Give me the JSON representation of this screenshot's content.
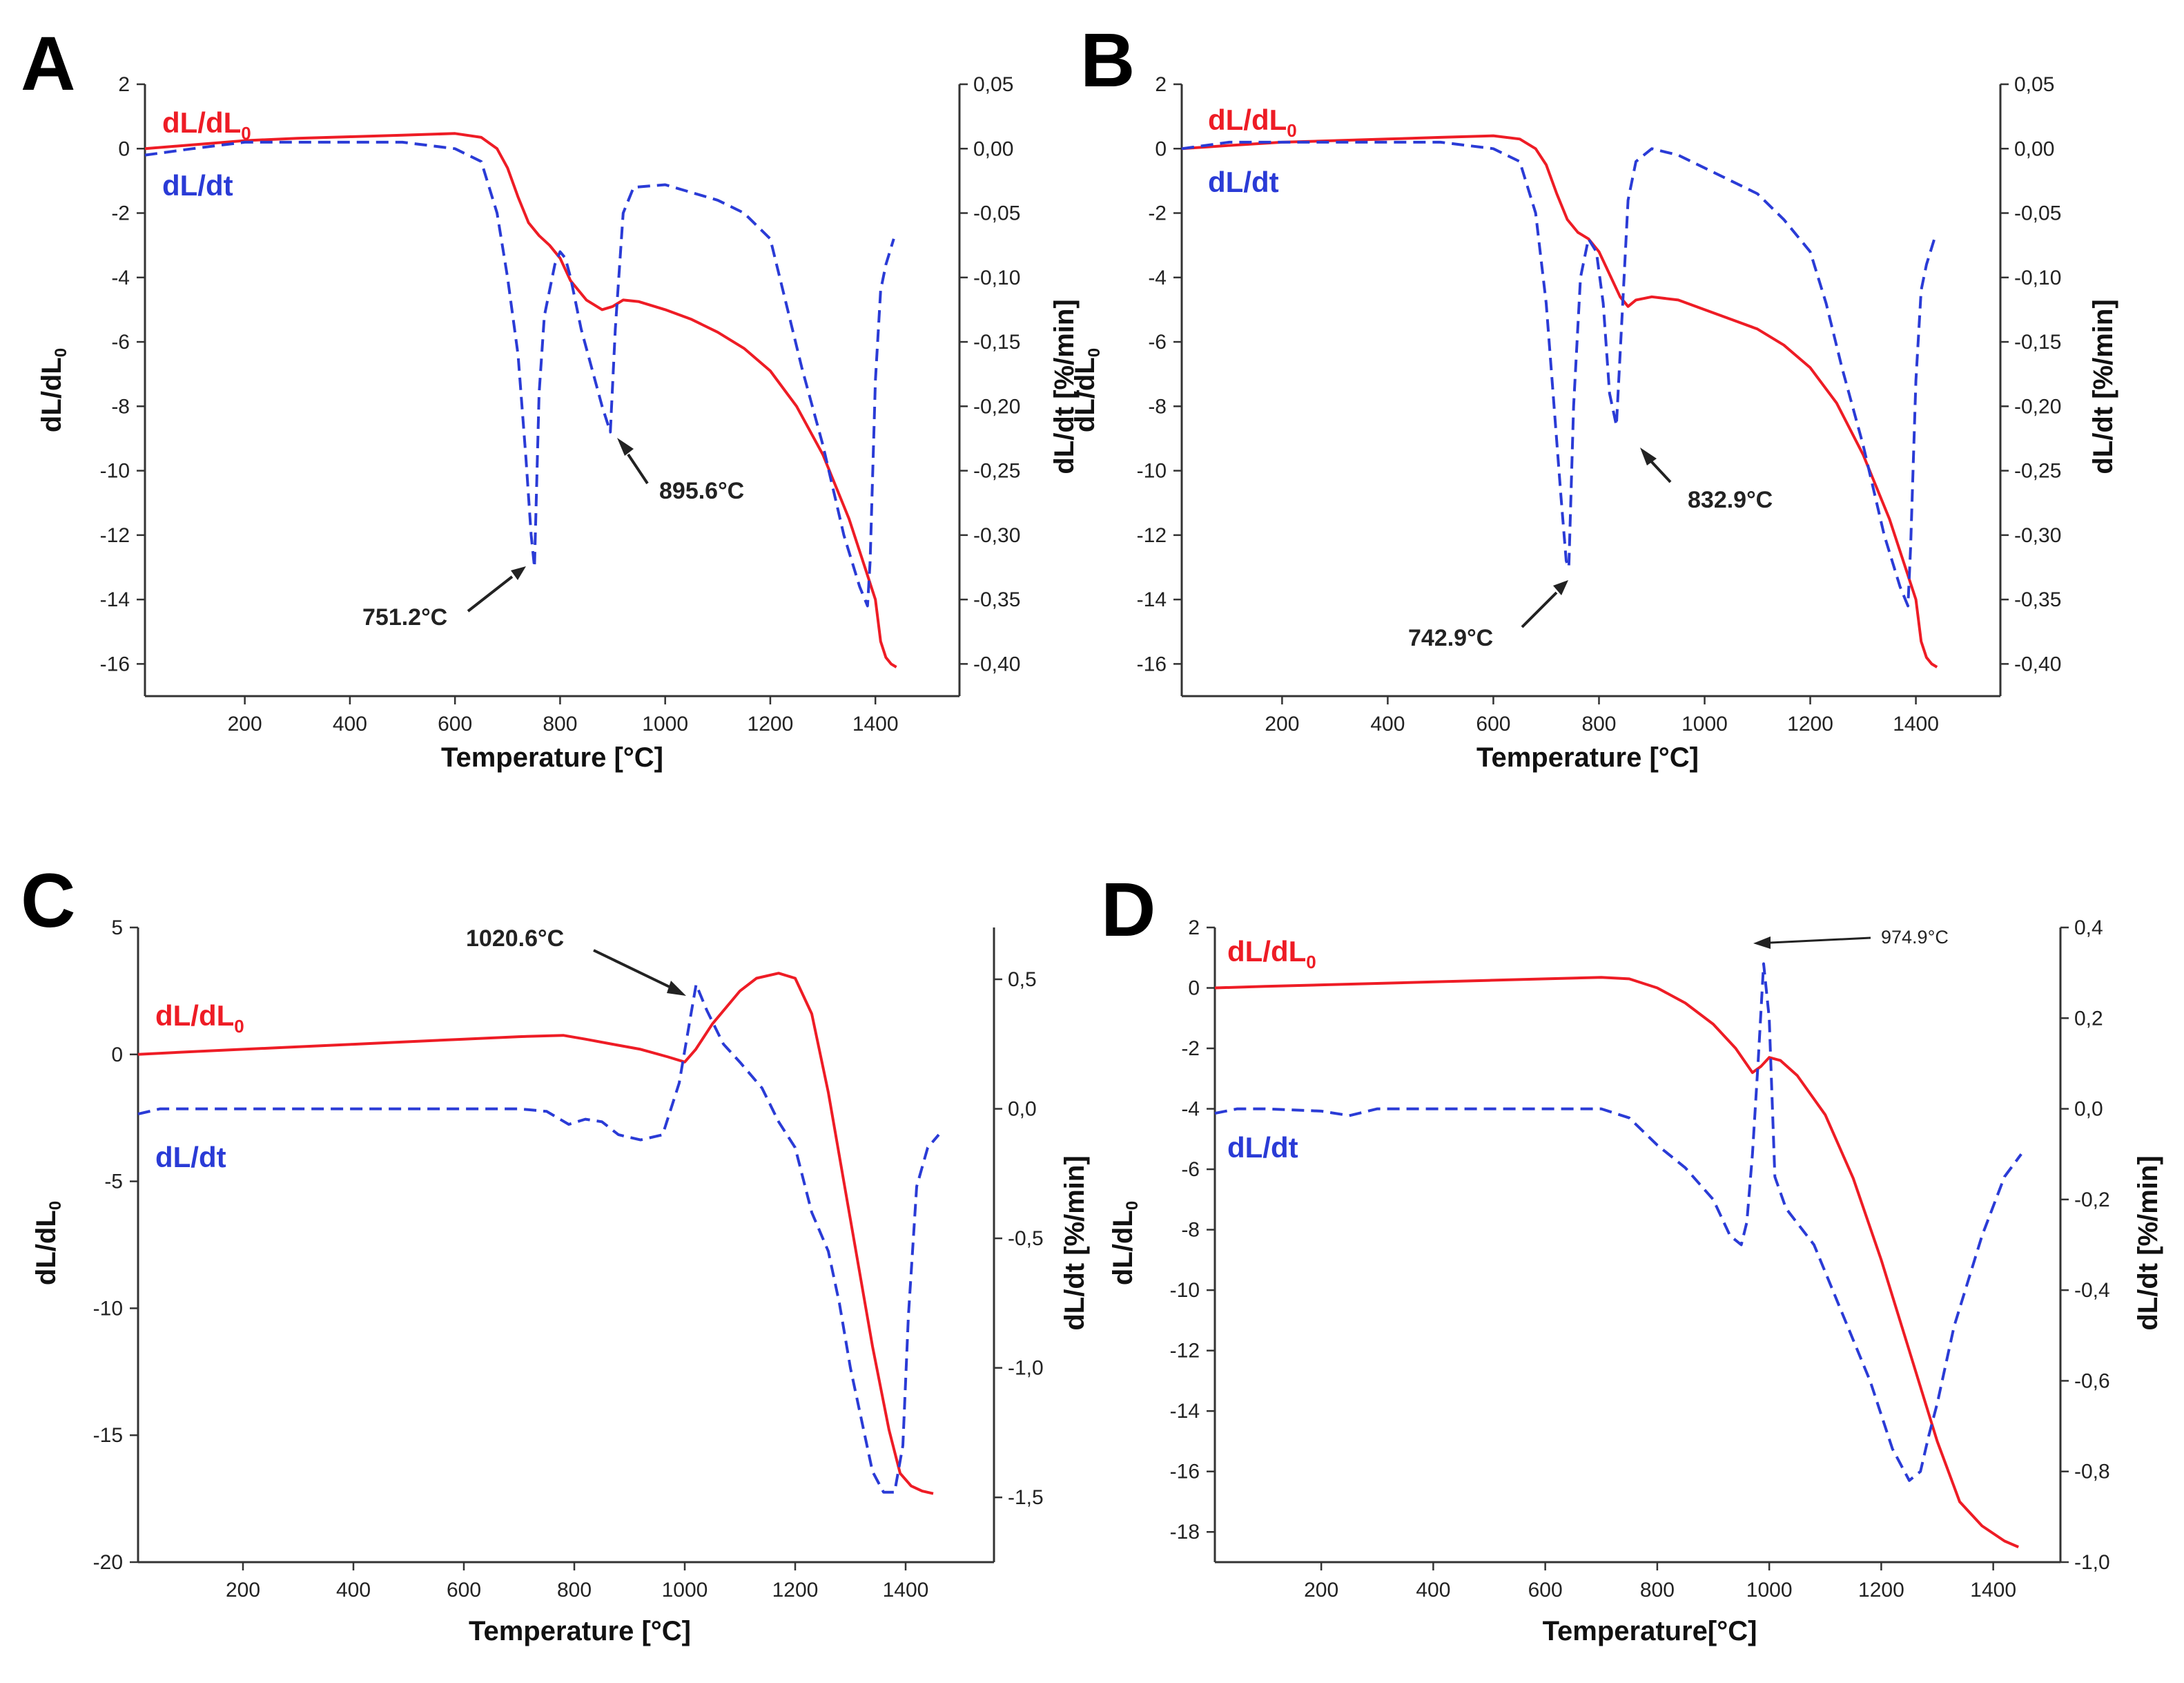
{
  "colors": {
    "red": "#ee1c25",
    "blue": "#2a3bd6",
    "axis": "#333333",
    "text": "#111111"
  },
  "chart_data": [
    {
      "panel": "A",
      "type": "line",
      "xlabel": "Temperature [°C]",
      "ylabel": "dL/dL",
      "ylabel_sub": "0",
      "ylabel2": "dL/dt [%/min]",
      "xlim": [
        10,
        1560
      ],
      "ylim": [
        -17,
        2
      ],
      "y2lim": [
        -0.425,
        0.05
      ],
      "xticks": [
        "200",
        "400",
        "600",
        "800",
        "1000",
        "1200",
        "1400"
      ],
      "yticks": [
        "2",
        "0",
        "-2",
        "-4",
        "-6",
        "-8",
        "-10",
        "-12",
        "-14",
        "-16"
      ],
      "y2ticks": [
        "0,05",
        "0,00",
        "-0,05",
        "-0,10",
        "-0,15",
        "-0,20",
        "-0,25",
        "-0,30",
        "-0,35",
        "-0,40"
      ],
      "series": [
        {
          "name": "dL/dL",
          "name_sub": "0",
          "axis": "left",
          "style": "solid",
          "color": "#ee1c25",
          "x": [
            10,
            100,
            200,
            300,
            400,
            500,
            600,
            650,
            680,
            700,
            720,
            740,
            760,
            780,
            800,
            820,
            850,
            880,
            900,
            920,
            950,
            1000,
            1050,
            1100,
            1150,
            1200,
            1250,
            1300,
            1350,
            1380,
            1400,
            1410,
            1420,
            1430,
            1440
          ],
          "y": [
            0,
            0.12,
            0.25,
            0.32,
            0.37,
            0.42,
            0.47,
            0.35,
            0.0,
            -0.6,
            -1.5,
            -2.3,
            -2.7,
            -3.0,
            -3.4,
            -4.1,
            -4.7,
            -5.0,
            -4.9,
            -4.7,
            -4.75,
            -5.0,
            -5.3,
            -5.7,
            -6.2,
            -6.9,
            -8.0,
            -9.5,
            -11.5,
            -13.0,
            -14.0,
            -15.3,
            -15.8,
            -16.0,
            -16.1
          ]
        },
        {
          "name": "dL/dt",
          "axis": "right",
          "style": "dashed",
          "color": "#2a3bd6",
          "x": [
            10,
            100,
            200,
            300,
            400,
            500,
            600,
            650,
            680,
            700,
            720,
            735,
            745,
            751.2,
            760,
            770,
            790,
            800,
            810,
            820,
            840,
            860,
            880,
            895.6,
            905,
            920,
            940,
            1000,
            1100,
            1150,
            1200,
            1230,
            1260,
            1300,
            1340,
            1370,
            1385,
            1390,
            1400,
            1410,
            1420,
            1435
          ],
          "y": [
            -0.005,
            0.0,
            0.005,
            0.005,
            0.005,
            0.005,
            0.0,
            -0.01,
            -0.05,
            -0.1,
            -0.16,
            -0.24,
            -0.3,
            -0.325,
            -0.19,
            -0.13,
            -0.09,
            -0.08,
            -0.085,
            -0.1,
            -0.14,
            -0.17,
            -0.2,
            -0.22,
            -0.14,
            -0.05,
            -0.03,
            -0.028,
            -0.04,
            -0.05,
            -0.07,
            -0.12,
            -0.17,
            -0.23,
            -0.3,
            -0.34,
            -0.355,
            -0.32,
            -0.18,
            -0.11,
            -0.09,
            -0.07
          ]
        }
      ],
      "legend": [
        "dL/dL",
        "dL/dt"
      ],
      "annotations": [
        "751.2°C",
        "895.6°C"
      ]
    },
    {
      "panel": "B",
      "type": "line",
      "xlabel": "Temperature [°C]",
      "ylabel": "dL/dL",
      "ylabel_sub": "0",
      "ylabel2": "dL/dt [%/min]",
      "xlim": [
        10,
        1560
      ],
      "ylim": [
        -17,
        2
      ],
      "y2lim": [
        -0.425,
        0.05
      ],
      "xticks": [
        "200",
        "400",
        "600",
        "800",
        "1000",
        "1200",
        "1400"
      ],
      "yticks": [
        "2",
        "0",
        "-2",
        "-4",
        "-6",
        "-8",
        "-10",
        "-12",
        "-14",
        "-16"
      ],
      "y2ticks": [
        "0,05",
        "0,00",
        "-0,05",
        "-0,10",
        "-0,15",
        "-0,20",
        "-0,25",
        "-0,30",
        "-0,35",
        "-0,40"
      ],
      "series": [
        {
          "name": "dL/dL",
          "name_sub": "0",
          "axis": "left",
          "style": "solid",
          "color": "#ee1c25",
          "x": [
            10,
            100,
            200,
            300,
            400,
            500,
            600,
            650,
            680,
            700,
            720,
            740,
            760,
            780,
            800,
            820,
            840,
            855,
            870,
            900,
            950,
            1000,
            1050,
            1100,
            1150,
            1200,
            1250,
            1300,
            1350,
            1380,
            1400,
            1410,
            1420,
            1430,
            1440
          ],
          "y": [
            0,
            0.1,
            0.2,
            0.25,
            0.3,
            0.35,
            0.4,
            0.3,
            0.0,
            -0.5,
            -1.4,
            -2.2,
            -2.6,
            -2.8,
            -3.2,
            -3.9,
            -4.6,
            -4.9,
            -4.7,
            -4.6,
            -4.7,
            -5.0,
            -5.3,
            -5.6,
            -6.1,
            -6.8,
            -7.9,
            -9.5,
            -11.5,
            -13.0,
            -14.0,
            -15.3,
            -15.8,
            -16.0,
            -16.1
          ]
        },
        {
          "name": "dL/dt",
          "axis": "right",
          "style": "dashed",
          "color": "#2a3bd6",
          "x": [
            10,
            100,
            200,
            300,
            400,
            500,
            600,
            650,
            680,
            700,
            715,
            728,
            738,
            742.9,
            752,
            765,
            780,
            795,
            808,
            820,
            832.9,
            845,
            855,
            870,
            900,
            950,
            1000,
            1100,
            1150,
            1200,
            1230,
            1260,
            1300,
            1340,
            1370,
            1385,
            1390,
            1400,
            1410,
            1420,
            1435
          ],
          "y": [
            0,
            0.005,
            0.005,
            0.005,
            0.005,
            0.005,
            0.0,
            -0.01,
            -0.05,
            -0.12,
            -0.2,
            -0.27,
            -0.32,
            -0.325,
            -0.2,
            -0.1,
            -0.07,
            -0.08,
            -0.12,
            -0.19,
            -0.215,
            -0.12,
            -0.04,
            -0.01,
            0.0,
            -0.005,
            -0.015,
            -0.035,
            -0.055,
            -0.08,
            -0.12,
            -0.17,
            -0.23,
            -0.3,
            -0.34,
            -0.355,
            -0.31,
            -0.18,
            -0.11,
            -0.09,
            -0.07
          ]
        }
      ],
      "legend": [
        "dL/dL",
        "dL/dt"
      ],
      "annotations": [
        "742.9°C",
        "832.9°C"
      ]
    },
    {
      "panel": "C",
      "type": "line",
      "xlabel": "Temperature [°C]",
      "ylabel": "dL/dL",
      "ylabel_sub": "0",
      "ylabel2": "dL/dt [%/min]",
      "xlim": [
        10,
        1560
      ],
      "ylim": [
        -20,
        5
      ],
      "y2lim": [
        -1.75,
        0.7
      ],
      "xticks": [
        "200",
        "400",
        "600",
        "800",
        "1000",
        "1200",
        "1400"
      ],
      "yticks": [
        "5",
        "0",
        "-5",
        "-10",
        "-15",
        "-20"
      ],
      "y2ticks": [
        "0,5",
        "0,0",
        "-0,5",
        "-1,0",
        "-1,5"
      ],
      "series": [
        {
          "name": "dL/dL",
          "name_sub": "0",
          "axis": "left",
          "style": "solid",
          "color": "#ee1c25",
          "x": [
            10,
            100,
            200,
            300,
            400,
            500,
            600,
            700,
            780,
            820,
            870,
            920,
            970,
            1000,
            1020,
            1050,
            1100,
            1130,
            1170,
            1200,
            1230,
            1260,
            1300,
            1340,
            1370,
            1390,
            1410,
            1430,
            1450
          ],
          "y": [
            0,
            0.1,
            0.2,
            0.3,
            0.4,
            0.5,
            0.6,
            0.7,
            0.75,
            0.6,
            0.4,
            0.2,
            -0.1,
            -0.3,
            0.2,
            1.2,
            2.5,
            3.0,
            3.2,
            3.0,
            1.6,
            -1.5,
            -6.5,
            -11.5,
            -14.8,
            -16.5,
            -17.0,
            -17.2,
            -17.3
          ]
        },
        {
          "name": "dL/dt",
          "axis": "right",
          "style": "dashed",
          "color": "#2a3bd6",
          "x": [
            10,
            50,
            100,
            200,
            300,
            400,
            500,
            600,
            700,
            750,
            790,
            820,
            850,
            880,
            920,
            960,
            990,
            1010,
            1020.6,
            1040,
            1070,
            1100,
            1140,
            1170,
            1200,
            1230,
            1260,
            1280,
            1300,
            1320,
            1340,
            1360,
            1380,
            1395,
            1405,
            1420,
            1440,
            1460
          ],
          "y": [
            -0.02,
            0.0,
            0.0,
            0.0,
            0.0,
            0.0,
            0.0,
            0.0,
            0.0,
            -0.01,
            -0.06,
            -0.04,
            -0.05,
            -0.1,
            -0.12,
            -0.1,
            0.1,
            0.35,
            0.48,
            0.38,
            0.25,
            0.18,
            0.08,
            -0.05,
            -0.15,
            -0.4,
            -0.55,
            -0.75,
            -1.0,
            -1.2,
            -1.4,
            -1.48,
            -1.48,
            -1.3,
            -0.8,
            -0.3,
            -0.15,
            -0.1
          ]
        }
      ],
      "legend": [
        "dL/dL",
        "dL/dt"
      ],
      "annotations": [
        "1020.6°C"
      ]
    },
    {
      "panel": "D",
      "type": "line",
      "xlabel": "Temperature[°C]",
      "ylabel": "dL/dL",
      "ylabel_sub": "0",
      "ylabel2": "dL/dt [%/min]",
      "xlim": [
        10,
        1520
      ],
      "ylim": [
        -19,
        2
      ],
      "y2lim": [
        -1.0,
        0.4
      ],
      "xticks": [
        "200",
        "400",
        "600",
        "800",
        "1000",
        "1200",
        "1400"
      ],
      "yticks": [
        "2",
        "0",
        "-2",
        "-4",
        "-6",
        "-8",
        "-10",
        "-12",
        "-14",
        "-16",
        "-18"
      ],
      "y2ticks": [
        "0,4",
        "0,2",
        "0,0",
        "-0,2",
        "-0,4",
        "-0,6",
        "-0,8",
        "-1,0"
      ],
      "series": [
        {
          "name": "dL/dL",
          "name_sub": "0",
          "axis": "left",
          "style": "solid",
          "color": "#ee1c25",
          "x": [
            10,
            100,
            200,
            300,
            400,
            500,
            600,
            700,
            750,
            800,
            850,
            900,
            940,
            970,
            985,
            1000,
            1020,
            1050,
            1100,
            1150,
            1200,
            1250,
            1300,
            1340,
            1380,
            1420,
            1445
          ],
          "y": [
            0,
            0.05,
            0.1,
            0.15,
            0.2,
            0.25,
            0.3,
            0.35,
            0.3,
            0.0,
            -0.5,
            -1.2,
            -2.0,
            -2.8,
            -2.6,
            -2.3,
            -2.4,
            -2.9,
            -4.2,
            -6.3,
            -9.0,
            -12.0,
            -15.0,
            -17.0,
            -17.8,
            -18.3,
            -18.5
          ]
        },
        {
          "name": "dL/dt",
          "axis": "right",
          "style": "dashed",
          "color": "#2a3bd6",
          "x": [
            10,
            50,
            100,
            200,
            250,
            300,
            400,
            500,
            600,
            700,
            750,
            800,
            850,
            900,
            930,
            950,
            960,
            970,
            980,
            990,
            1000,
            1010,
            1030,
            1080,
            1130,
            1180,
            1220,
            1250,
            1270,
            1285,
            1300,
            1330,
            1380,
            1420,
            1450
          ],
          "y": [
            -0.01,
            0.0,
            0.0,
            -0.005,
            -0.015,
            0.0,
            0.0,
            0.0,
            0.0,
            0.0,
            -0.02,
            -0.08,
            -0.13,
            -0.2,
            -0.28,
            -0.3,
            -0.25,
            -0.1,
            0.1,
            0.32,
            0.2,
            -0.15,
            -0.22,
            -0.3,
            -0.45,
            -0.6,
            -0.75,
            -0.82,
            -0.8,
            -0.72,
            -0.65,
            -0.48,
            -0.28,
            -0.15,
            -0.1
          ]
        }
      ],
      "legend": [
        "dL/dL",
        "dL/dt"
      ],
      "annotations": [
        "974.9°C"
      ]
    }
  ]
}
